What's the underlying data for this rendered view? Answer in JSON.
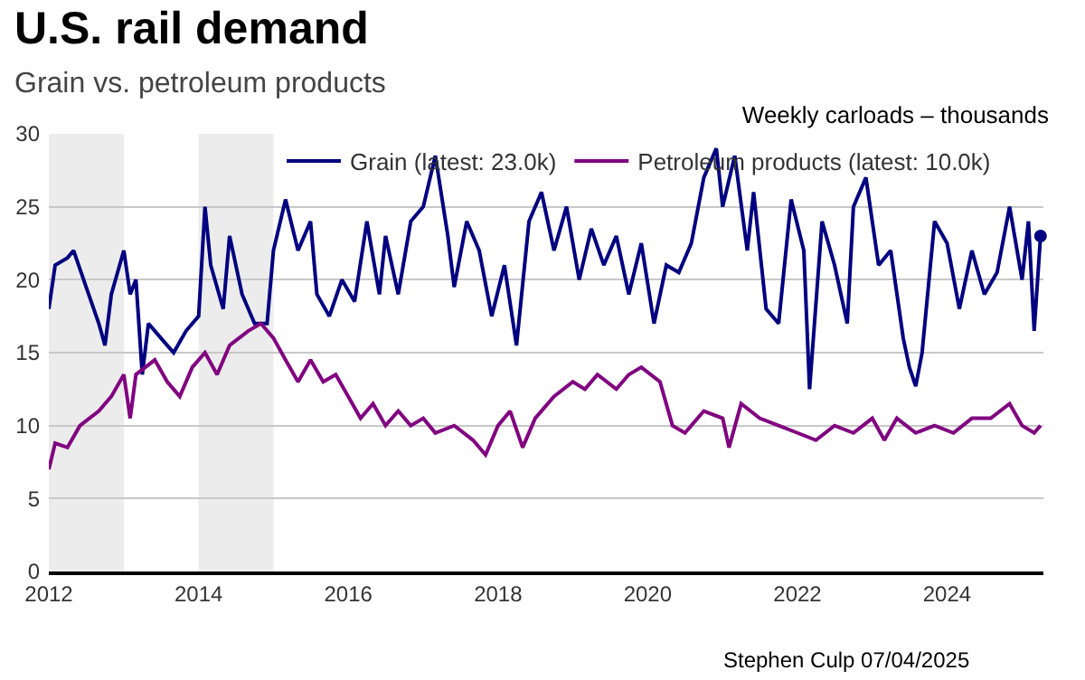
{
  "chart_data": {
    "type": "line",
    "title": "U.S. rail demand",
    "subtitle": "Grain vs. petroleum products",
    "ylabel": "Weekly carloads – thousands",
    "annotations": [
      "Stephen Culp 07/04/2025"
    ],
    "xlim": [
      "2012-01-01",
      "2025-04-15"
    ],
    "xticks": [
      {
        "value": "2012-01-01",
        "label": "2012"
      },
      {
        "value": "2014-01-01",
        "label": "2014"
      },
      {
        "value": "2016-01-01",
        "label": "2016"
      },
      {
        "value": "2018-01-01",
        "label": "2018"
      },
      {
        "value": "2020-01-01",
        "label": "2020"
      },
      {
        "value": "2022-01-01",
        "label": "2022"
      },
      {
        "value": "2024-01-01",
        "label": "2024"
      }
    ],
    "ylim": [
      0,
      30
    ],
    "yticks": [
      0,
      5,
      10,
      15,
      20,
      25,
      30
    ],
    "grid": "y",
    "legend": "top",
    "line_style": "solid",
    "bands": [
      {
        "axis": "x",
        "from": "2012-01-01",
        "to": "2013-01-01",
        "color": "#ececec"
      },
      {
        "axis": "x",
        "from": "2014-01-01",
        "to": "2015-01-01",
        "color": "#ececec"
      }
    ],
    "series": [
      {
        "name": "Grain (latest: 23.0k)",
        "color": "#000080",
        "x": [
          "2012-01",
          "2012-02",
          "2012-04",
          "2012-05",
          "2012-07",
          "2012-09",
          "2012-10",
          "2012-11",
          "2013-01",
          "2013-02",
          "2013-03",
          "2013-04",
          "2013-05",
          "2013-07",
          "2013-09",
          "2013-11",
          "2014-01",
          "2014-02",
          "2014-03",
          "2014-05",
          "2014-06",
          "2014-08",
          "2014-10",
          "2014-12",
          "2015-01",
          "2015-03",
          "2015-05",
          "2015-07",
          "2015-08",
          "2015-10",
          "2015-12",
          "2016-02",
          "2016-04",
          "2016-06",
          "2016-07",
          "2016-09",
          "2016-11",
          "2017-01",
          "2017-03",
          "2017-05",
          "2017-06",
          "2017-08",
          "2017-10",
          "2017-12",
          "2018-02",
          "2018-04",
          "2018-06",
          "2018-08",
          "2018-10",
          "2018-12",
          "2019-02",
          "2019-04",
          "2019-06",
          "2019-08",
          "2019-10",
          "2019-12",
          "2020-02",
          "2020-04",
          "2020-06",
          "2020-08",
          "2020-10",
          "2020-12",
          "2021-01",
          "2021-03",
          "2021-05",
          "2021-06",
          "2021-08",
          "2021-10",
          "2021-12",
          "2022-02",
          "2022-03",
          "2022-05",
          "2022-07",
          "2022-09",
          "2022-10",
          "2022-12",
          "2023-02",
          "2023-04",
          "2023-06",
          "2023-07",
          "2023-08",
          "2023-09",
          "2023-11",
          "2024-01",
          "2024-03",
          "2024-05",
          "2024-07",
          "2024-09",
          "2024-11",
          "2025-01",
          "2025-02",
          "2025-03",
          "2025-04"
        ],
        "values": [
          18,
          21,
          21.5,
          22,
          19.5,
          17,
          15.5,
          19,
          22,
          19,
          20,
          13.5,
          17,
          16,
          15,
          16.5,
          17.5,
          25,
          21,
          18,
          23,
          19,
          17,
          17,
          22,
          25.5,
          22,
          24,
          19,
          17.5,
          20,
          18.5,
          24,
          19,
          23,
          19,
          24,
          25,
          28.5,
          23,
          19.5,
          24,
          22,
          17.5,
          21,
          15.5,
          24,
          26,
          22,
          25,
          20,
          23.5,
          21,
          23,
          19,
          22.5,
          17,
          21,
          20.5,
          22.5,
          27,
          29,
          25,
          28.5,
          22,
          26,
          18,
          17,
          25.5,
          22,
          12.5,
          24,
          21,
          17,
          25,
          27,
          21,
          22,
          16,
          14,
          12.7,
          15,
          24,
          22.5,
          18,
          22,
          19,
          20.5,
          25,
          20,
          24,
          16.5,
          23
        ]
      },
      {
        "name": "Petroleum products (latest: 10.0k)",
        "color": "#800080",
        "x": [
          "2012-01",
          "2012-02",
          "2012-04",
          "2012-06",
          "2012-09",
          "2012-11",
          "2013-01",
          "2013-02",
          "2013-03",
          "2013-06",
          "2013-08",
          "2013-10",
          "2013-12",
          "2014-02",
          "2014-04",
          "2014-06",
          "2014-09",
          "2014-11",
          "2015-01",
          "2015-03",
          "2015-05",
          "2015-07",
          "2015-09",
          "2015-11",
          "2016-01",
          "2016-03",
          "2016-05",
          "2016-07",
          "2016-09",
          "2016-11",
          "2017-01",
          "2017-03",
          "2017-06",
          "2017-09",
          "2017-11",
          "2018-01",
          "2018-03",
          "2018-05",
          "2018-07",
          "2018-10",
          "2019-01",
          "2019-03",
          "2019-05",
          "2019-08",
          "2019-10",
          "2019-12",
          "2020-03",
          "2020-05",
          "2020-07",
          "2020-10",
          "2021-01",
          "2021-02",
          "2021-04",
          "2021-07",
          "2021-10",
          "2022-01",
          "2022-04",
          "2022-07",
          "2022-10",
          "2023-01",
          "2023-03",
          "2023-05",
          "2023-08",
          "2023-11",
          "2024-02",
          "2024-05",
          "2024-08",
          "2024-11",
          "2025-01",
          "2025-03",
          "2025-04"
        ],
        "values": [
          7,
          8.8,
          8.5,
          10,
          11,
          12,
          13.5,
          10.5,
          13.5,
          14.5,
          13,
          12,
          14,
          15,
          13.5,
          15.5,
          16.5,
          17,
          16,
          14.5,
          13,
          14.5,
          13,
          13.5,
          12,
          10.5,
          11.5,
          10,
          11,
          10,
          10.5,
          9.5,
          10,
          9,
          8,
          10,
          11,
          8.5,
          10.5,
          12,
          13,
          12.5,
          13.5,
          12.5,
          13.5,
          14,
          13,
          10,
          9.5,
          11,
          10.5,
          8.5,
          11.5,
          10.5,
          10,
          9.5,
          9,
          10,
          9.5,
          10.5,
          9,
          10.5,
          9.5,
          10,
          9.5,
          10.5,
          10.5,
          11.5,
          10,
          9.5,
          10
        ]
      },
      {
        "type": "scatter",
        "color": "#000080",
        "x": [
          "2025-04"
        ],
        "values": [
          23
        ],
        "marker": "circle"
      }
    ]
  }
}
